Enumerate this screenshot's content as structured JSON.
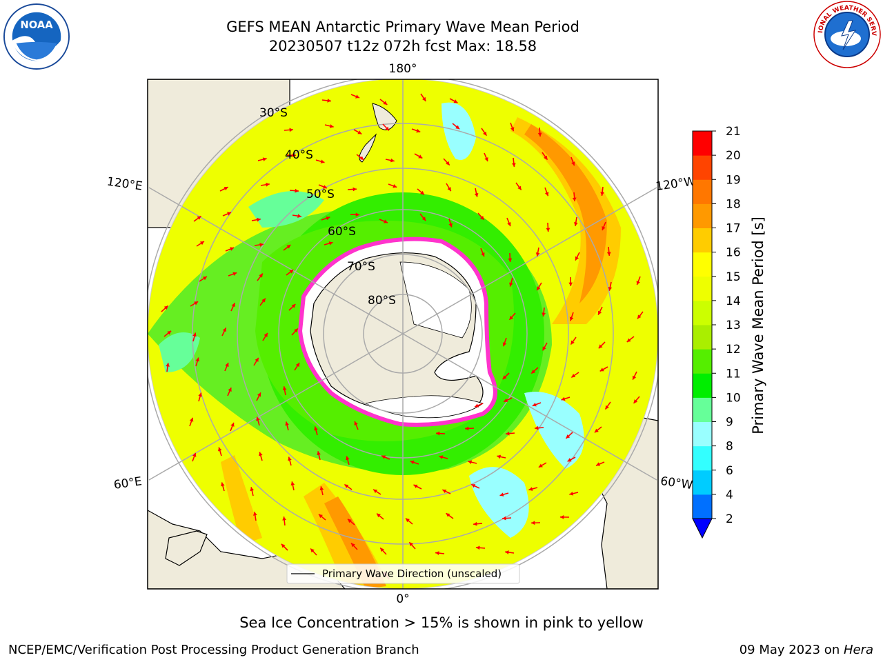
{
  "header": {
    "title_line1": "GEFS MEAN Antarctic Primary Wave Mean Period",
    "title_line2": "20230507 t12z 072h fcst   Max: 18.58"
  },
  "logos": {
    "left": {
      "name": "noaa-logo",
      "text": "NOAA"
    },
    "right": {
      "name": "nws-logo",
      "text": "NATIONAL WEATHER SERVICE"
    }
  },
  "map": {
    "projection": "south polar stereographic",
    "longitude_labels": {
      "top": "180°",
      "bottom": "0°",
      "upper_left": "120°E",
      "upper_right": "120°W",
      "lower_left": "60°E",
      "lower_right": "60°W"
    },
    "latitude_labels": [
      "30°S",
      "40°S",
      "50°S",
      "60°S",
      "70°S",
      "80°S"
    ],
    "legend": "Primary Wave Direction (unscaled)",
    "field_colors": {
      "land": "#efebdb",
      "ice_shelf": "#ffffff",
      "sea_ice": "#ff33cc",
      "arrows": "#ff0000"
    }
  },
  "colorbar": {
    "label": "Primary Wave Mean Period [s]",
    "ticks": [
      "2",
      "4",
      "6",
      "8",
      "9",
      "10",
      "11",
      "12",
      "13",
      "14",
      "15",
      "16",
      "17",
      "18",
      "19",
      "20",
      "21"
    ],
    "colors": [
      "#0070ff",
      "#00ccff",
      "#33ffff",
      "#99ffff",
      "#66ff99",
      "#00ee00",
      "#55ee00",
      "#aaee00",
      "#ccff00",
      "#eeff00",
      "#ffff00",
      "#ffcc00",
      "#ff9900",
      "#ff7700",
      "#ff4400",
      "#ff0000"
    ],
    "extend_color": "#0000ff"
  },
  "caption": "Sea Ice Concentration > 15% is shown in pink to yellow",
  "footer": {
    "left": "NCEP/EMC/Verification Post Processing Product Generation Branch",
    "right_date": "09 May 2023 on ",
    "right_host": "Hera"
  }
}
